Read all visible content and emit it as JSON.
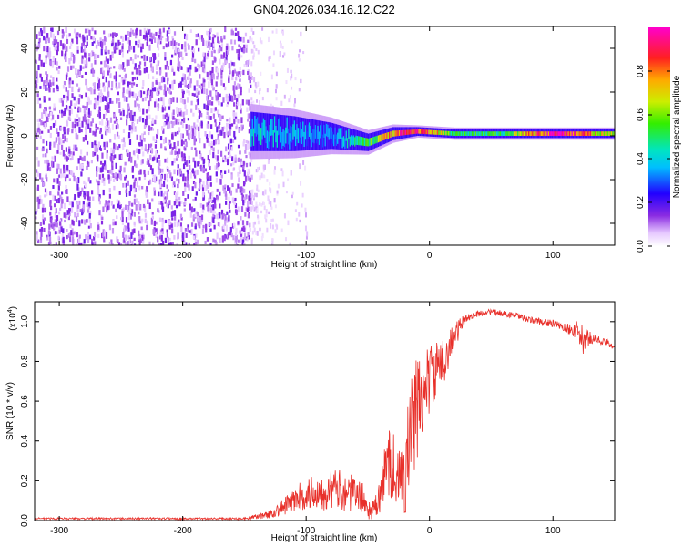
{
  "figure_title": "GN04.2026.034.16.12.C22",
  "chart_data": [
    {
      "type": "heatmap",
      "panel": "spectrogram",
      "xlabel": "Height of straight line (km)",
      "ylabel": "Frequency (Hz)",
      "xlim": [
        -320,
        150
      ],
      "ylim": [
        -50,
        50
      ],
      "xticks": [
        -300,
        -200,
        -100,
        0,
        100
      ],
      "yticks": [
        -40,
        -20,
        0,
        20,
        40
      ],
      "xtick_labels": [
        "-300",
        "-200",
        "-100",
        "0",
        "100"
      ],
      "ytick_labels": [
        "-40",
        "-20",
        "0",
        "20",
        "40"
      ],
      "noise_region": {
        "x": [
          -320,
          -145
        ],
        "y": [
          -50,
          50
        ],
        "level": 0.1
      },
      "faint_region": {
        "x": [
          -145,
          -100
        ],
        "level": 0.03
      },
      "signal_track": [
        {
          "x": -145,
          "y": 2,
          "halfwidth": 9,
          "level": 0.4
        },
        {
          "x": -110,
          "y": 1,
          "halfwidth": 8,
          "level": 0.35
        },
        {
          "x": -80,
          "y": 0,
          "halfwidth": 6,
          "level": 0.3
        },
        {
          "x": -50,
          "y": -3,
          "halfwidth": 4,
          "level": 0.5
        },
        {
          "x": -30,
          "y": 1,
          "halfwidth": 3,
          "level": 0.8
        },
        {
          "x": -10,
          "y": 2,
          "halfwidth": 2,
          "level": 0.9
        },
        {
          "x": 20,
          "y": 1,
          "halfwidth": 2,
          "level": 0.5
        },
        {
          "x": 60,
          "y": 1,
          "halfwidth": 2,
          "level": 0.5
        },
        {
          "x": 100,
          "y": 1,
          "halfwidth": 2,
          "level": 0.95
        },
        {
          "x": 150,
          "y": 1,
          "halfwidth": 2,
          "level": 0.6
        }
      ],
      "colorbar": {
        "label": "Normalized spectral amplitude",
        "range": [
          0,
          1
        ],
        "ticks": [
          0.0,
          0.2,
          0.4,
          0.6,
          0.8
        ],
        "tick_labels": [
          "0.0",
          "0.2",
          "0.4",
          "0.6",
          "0.8"
        ]
      }
    },
    {
      "type": "line",
      "panel": "snr",
      "xlabel": "Height of straight line (km)",
      "ylabel": "SNR (10 * v/v)",
      "multiplier_label": "(x10",
      "multiplier_exponent": "4",
      "multiplier_close": ")",
      "xlim": [
        -320,
        150
      ],
      "ylim": [
        0,
        1.1
      ],
      "xticks": [
        -300,
        -200,
        -100,
        0,
        100
      ],
      "yticks": [
        0.0,
        0.2,
        0.4,
        0.6,
        0.8,
        1.0
      ],
      "xtick_labels": [
        "-300",
        "-200",
        "-100",
        "0",
        "100"
      ],
      "ytick_labels": [
        "0.0",
        "0.2",
        "0.4",
        "0.6",
        "0.8",
        "1.0"
      ],
      "color": "#e8302a",
      "series": [
        {
          "name": "SNR",
          "x": [
            -320,
            -250,
            -200,
            -150,
            -130,
            -115,
            -105,
            -95,
            -85,
            -75,
            -65,
            -55,
            -48,
            -42,
            -38,
            -33,
            -28,
            -24,
            -20,
            -16,
            -12,
            -8,
            -4,
            0,
            5,
            10,
            15,
            20,
            25,
            30,
            40,
            50,
            60,
            70,
            80,
            90,
            100,
            110,
            120,
            125,
            130,
            140,
            150
          ],
          "y": [
            0.01,
            0.01,
            0.01,
            0.01,
            0.03,
            0.08,
            0.12,
            0.14,
            0.15,
            0.16,
            0.14,
            0.12,
            0.04,
            0.08,
            0.18,
            0.32,
            0.25,
            0.2,
            0.22,
            0.42,
            0.5,
            0.6,
            0.65,
            0.72,
            0.75,
            0.78,
            0.86,
            0.92,
            0.98,
            1.02,
            1.04,
            1.05,
            1.04,
            1.03,
            1.01,
            1.0,
            0.99,
            0.97,
            0.95,
            0.9,
            0.92,
            0.9,
            0.88
          ],
          "noise": [
            0.005,
            0.005,
            0.005,
            0.005,
            0.02,
            0.05,
            0.07,
            0.09,
            0.1,
            0.1,
            0.1,
            0.08,
            0.04,
            0.07,
            0.12,
            0.2,
            0.18,
            0.15,
            0.2,
            0.3,
            0.3,
            0.25,
            0.2,
            0.18,
            0.15,
            0.12,
            0.1,
            0.08,
            0.04,
            0.02,
            0.015,
            0.015,
            0.015,
            0.015,
            0.015,
            0.02,
            0.02,
            0.02,
            0.05,
            0.08,
            0.03,
            0.02,
            0.02
          ]
        }
      ]
    }
  ]
}
